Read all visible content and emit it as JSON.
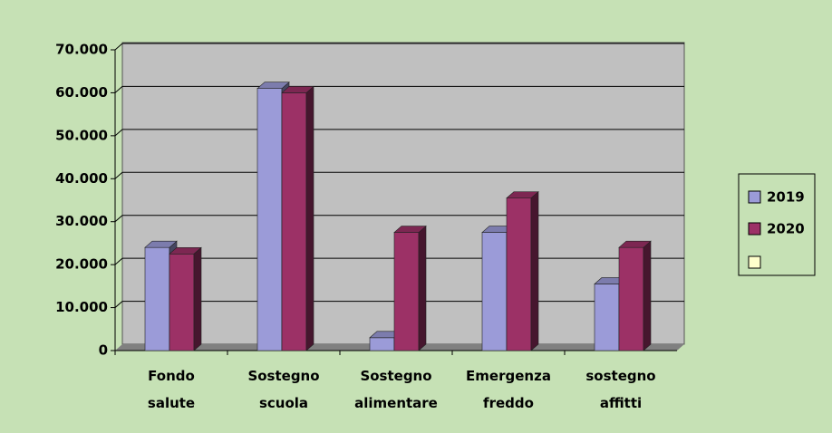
{
  "chart_data": {
    "type": "bar3d",
    "categories": [
      "Fondo salute",
      "Sostegno scuola",
      "Sostegno alimentare",
      "Emergenza freddo",
      "sostegno affitti"
    ],
    "series": [
      {
        "name": "2019",
        "color": "#9b9bd8",
        "values": [
          24000,
          61000,
          3000,
          27500,
          15500
        ]
      },
      {
        "name": "2020",
        "color": "#9c3166",
        "values": [
          22500,
          60000,
          27500,
          35500,
          24000
        ]
      }
    ],
    "ylim": [
      0,
      70000
    ],
    "yticks": [
      0,
      {
        "value": 10000,
        "label": "10.000"
      },
      {
        "value": 20000,
        "label": "20.000"
      },
      {
        "value": 30000,
        "label": "30.000"
      },
      {
        "value": 40000,
        "label": "40.000"
      },
      {
        "value": 50000,
        "label": "50.000"
      },
      {
        "value": 60000,
        "label": "60.000"
      },
      {
        "value": 70000,
        "label": "70.000"
      }
    ],
    "grid": true,
    "legend": "right"
  }
}
